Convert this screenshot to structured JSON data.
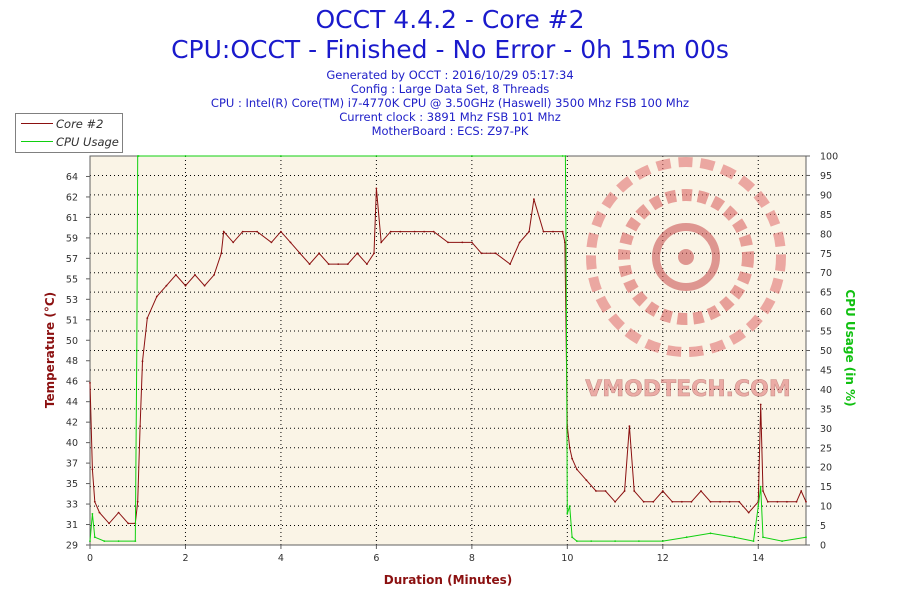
{
  "header": {
    "title": "OCCT 4.4.2 - Core #2",
    "subtitle": "CPU:OCCT - Finished - No Error - 0h 15m 00s",
    "info_lines": [
      "Generated by OCCT : 2016/10/29 05:17:34",
      "Config : Large Data Set, 8 Threads",
      "CPU : Intel(R) Core(TM) i7-4770K CPU @ 3.50GHz (Haswell) 3500 Mhz FSB 100 Mhz",
      "Current clock : 3891 Mhz FSB 101 Mhz",
      "MotherBoard : ECS: Z97-PK"
    ]
  },
  "watermark": {
    "text": "VMODTECH.COM"
  },
  "chart_data": {
    "type": "line",
    "xlabel": "Duration (Minutes)",
    "ylabel": "Temperature (°C)",
    "y2label": "CPU Usage (in %)",
    "xlim": [
      0,
      15
    ],
    "ylim": [
      29,
      65
    ],
    "y2lim": [
      0,
      100
    ],
    "x_ticks": [
      "0",
      "2",
      "4",
      "6",
      "8",
      "10",
      "12",
      "14"
    ],
    "y_ticks": [
      "29",
      "31",
      "33",
      "35",
      "37",
      "40",
      "42",
      "44",
      "46",
      "48",
      "50",
      "51",
      "53",
      "55",
      "57",
      "59",
      "61",
      "62",
      "64"
    ],
    "y2_ticks": [
      "0",
      "5",
      "10",
      "15",
      "20",
      "25",
      "30",
      "35",
      "40",
      "45",
      "50",
      "55",
      "60",
      "65",
      "70",
      "75",
      "80",
      "85",
      "90",
      "95",
      "100"
    ],
    "grid": true,
    "legend_position": "top-left",
    "colors": {
      "temperature": "#8b1010",
      "usage": "#10d010",
      "plot_bg": "#faf4e6",
      "title": "#1a1acc"
    },
    "series": [
      {
        "name": "Core #2",
        "axis": "left",
        "x": [
          0,
          0.05,
          0.1,
          0.2,
          0.4,
          0.6,
          0.8,
          0.95,
          1.0,
          1.05,
          1.1,
          1.2,
          1.4,
          1.6,
          1.8,
          2.0,
          2.2,
          2.4,
          2.6,
          2.75,
          2.8,
          3.0,
          3.2,
          3.5,
          3.8,
          4.0,
          4.2,
          4.4,
          4.6,
          4.8,
          5.0,
          5.2,
          5.4,
          5.6,
          5.8,
          5.95,
          6.0,
          6.1,
          6.3,
          6.5,
          6.8,
          7.0,
          7.2,
          7.5,
          7.8,
          8.0,
          8.2,
          8.5,
          8.8,
          9.0,
          9.2,
          9.3,
          9.5,
          9.7,
          9.9,
          9.95,
          10.0,
          10.05,
          10.1,
          10.2,
          10.4,
          10.6,
          10.8,
          11.0,
          11.2,
          11.3,
          11.4,
          11.6,
          11.8,
          12.0,
          12.2,
          12.4,
          12.6,
          12.8,
          13.0,
          13.2,
          13.4,
          13.6,
          13.8,
          14.0,
          14.05,
          14.1,
          14.2,
          14.4,
          14.6,
          14.8,
          14.9,
          15.0
        ],
        "values": [
          44,
          36,
          33,
          32,
          31,
          32,
          31,
          31,
          33,
          40,
          46,
          50,
          52,
          53,
          54,
          53,
          54,
          53,
          54,
          56,
          58,
          57,
          58,
          58,
          57,
          58,
          57,
          56,
          55,
          56,
          55,
          55,
          55,
          56,
          55,
          56,
          62,
          57,
          58,
          58,
          58,
          58,
          58,
          57,
          57,
          57,
          56,
          56,
          55,
          57,
          58,
          61,
          58,
          58,
          58,
          57,
          40,
          38,
          37,
          36,
          35,
          34,
          34,
          33,
          34,
          40,
          34,
          33,
          33,
          34,
          33,
          33,
          33,
          34,
          33,
          33,
          33,
          33,
          32,
          33,
          42,
          34,
          33,
          33,
          33,
          33,
          34,
          33
        ]
      },
      {
        "name": "CPU Usage",
        "axis": "right",
        "x": [
          0,
          0.05,
          0.1,
          0.3,
          0.6,
          0.95,
          0.98,
          1.0,
          1.02,
          2.0,
          4.0,
          6.0,
          8.0,
          9.9,
          9.96,
          9.98,
          10.0,
          10.05,
          10.1,
          10.2,
          10.5,
          11.0,
          11.5,
          12.0,
          12.5,
          13.0,
          13.5,
          13.9,
          14.0,
          14.05,
          14.1,
          14.5,
          15.0
        ],
        "values": [
          1,
          8,
          2,
          1,
          1,
          1,
          50,
          100,
          100,
          100,
          100,
          100,
          100,
          100,
          100,
          60,
          8,
          10,
          2,
          1,
          1,
          1,
          1,
          1,
          2,
          3,
          2,
          1,
          10,
          15,
          2,
          1,
          2
        ]
      }
    ]
  }
}
